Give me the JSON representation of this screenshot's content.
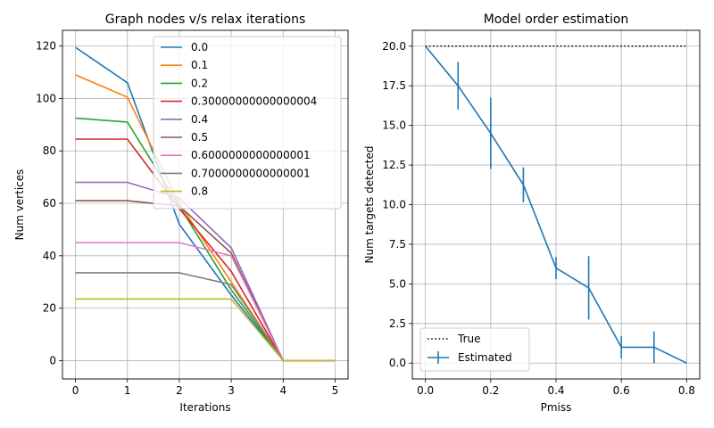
{
  "chart_data": [
    {
      "type": "line",
      "title": "Graph nodes v/s relax iterations",
      "xlabel": "Iterations",
      "ylabel": "Num vertices",
      "x": [
        0,
        1,
        2,
        3,
        4,
        5
      ],
      "xlim": [
        -0.25,
        5.25
      ],
      "ylim": [
        -7,
        126
      ],
      "xticks": [
        0,
        1,
        2,
        3,
        4,
        5
      ],
      "yticks": [
        0,
        20,
        40,
        60,
        80,
        100,
        120
      ],
      "grid": true,
      "legend_position": "upper-right",
      "series": [
        {
          "name": "0.0",
          "color": "#1f77b4",
          "values": [
            119.5,
            106,
            52,
            25,
            0,
            0
          ]
        },
        {
          "name": "0.1",
          "color": "#ff7f0e",
          "values": [
            109,
            100.5,
            60,
            30,
            0,
            0
          ]
        },
        {
          "name": "0.2",
          "color": "#2ca02c",
          "values": [
            92.5,
            91,
            59,
            27,
            0,
            0
          ]
        },
        {
          "name": "0.30000000000000004",
          "color": "#d62728",
          "values": [
            84.5,
            84.5,
            58,
            34,
            0,
            0
          ]
        },
        {
          "name": "0.4",
          "color": "#9467bd",
          "values": [
            68,
            68,
            62,
            43,
            0,
            0
          ]
        },
        {
          "name": "0.5",
          "color": "#8c564b",
          "values": [
            61,
            61,
            59,
            41,
            0,
            0
          ]
        },
        {
          "name": "0.6000000000000001",
          "color": "#e377c2",
          "values": [
            45,
            45,
            45,
            40,
            0,
            0
          ]
        },
        {
          "name": "0.7000000000000001",
          "color": "#7f7f7f",
          "values": [
            33.5,
            33.5,
            33.5,
            29,
            0,
            0
          ]
        },
        {
          "name": "0.8",
          "color": "#bcbd22",
          "values": [
            23.5,
            23.5,
            23.5,
            23.5,
            0,
            0
          ]
        }
      ]
    },
    {
      "type": "line",
      "title": "Model order estimation",
      "xlabel": "Pmiss",
      "ylabel": "Num targets detected",
      "x": [
        0.0,
        0.1,
        0.2,
        0.3,
        0.4,
        0.5,
        0.6,
        0.7,
        0.8
      ],
      "xlim": [
        -0.04,
        0.84
      ],
      "ylim": [
        -1.0,
        21.0
      ],
      "xticks": [
        0.0,
        0.2,
        0.4,
        0.6,
        0.8
      ],
      "xtick_labels": [
        "0.0",
        "0.2",
        "0.4",
        "0.6",
        "0.8"
      ],
      "yticks": [
        0.0,
        2.5,
        5.0,
        7.5,
        10.0,
        12.5,
        15.0,
        17.5,
        20.0
      ],
      "ytick_labels": [
        "0.0",
        "2.5",
        "5.0",
        "7.5",
        "10.0",
        "12.5",
        "15.0",
        "17.5",
        "20.0"
      ],
      "grid": true,
      "legend_position": "lower-left",
      "series": [
        {
          "name": "True",
          "style": "dotted",
          "color": "#000000",
          "values": [
            20,
            20,
            20,
            20,
            20,
            20,
            20,
            20,
            20
          ]
        },
        {
          "name": "Estimated",
          "style": "errorbar",
          "color": "#1f77b4",
          "values": [
            20,
            17.5,
            14.5,
            11.25,
            6.0,
            4.75,
            1.0,
            1.0,
            0.0
          ],
          "errors": [
            0,
            1.5,
            2.25,
            1.1,
            0.7,
            2.0,
            0.7,
            1.0,
            0
          ]
        }
      ]
    }
  ]
}
